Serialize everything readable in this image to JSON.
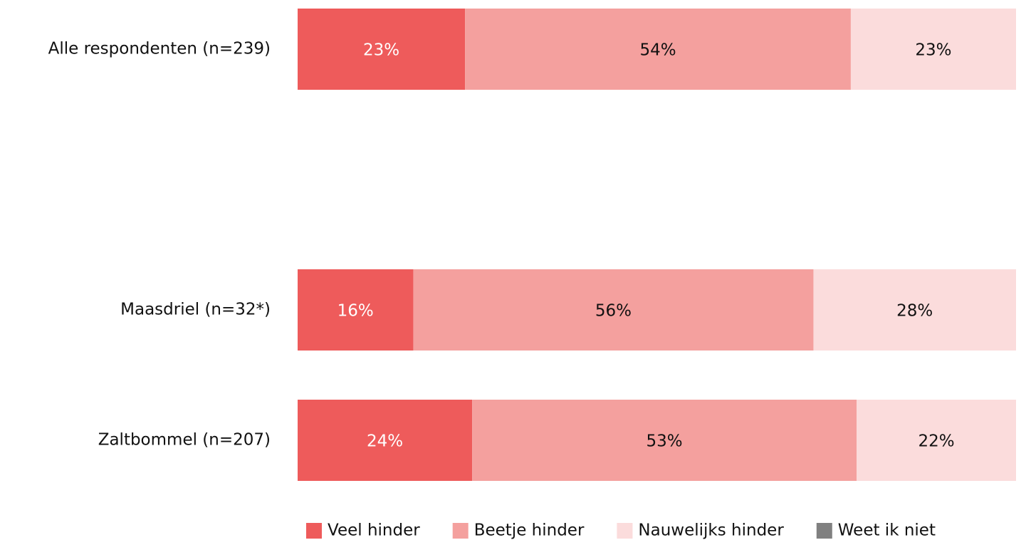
{
  "chart_data": {
    "type": "stacked-bar-horizontal",
    "categories": [
      "Alle respondenten (n=239)",
      null,
      "Maasdriel (n=32*)",
      "Zaltbommel (n=207)"
    ],
    "xlim": [
      0,
      100
    ],
    "series": [
      {
        "name": "Veel hinder",
        "color": "#ee5b5b",
        "label_color": "#ffffff",
        "values": [
          23.3,
          null,
          16.1,
          24.3
        ],
        "value_labels": [
          "23%",
          null,
          "16%",
          "24%"
        ]
      },
      {
        "name": "Beetje hinder",
        "color": "#f4a09e",
        "label_color": "#111111",
        "values": [
          53.7,
          null,
          55.7,
          53.5
        ],
        "value_labels": [
          "54%",
          null,
          "56%",
          "53%"
        ]
      },
      {
        "name": "Nauwelijks hinder",
        "color": "#fbdcdc",
        "label_color": "#111111",
        "values": [
          23.0,
          null,
          28.2,
          22.2
        ],
        "value_labels": [
          "23%",
          null,
          "28%",
          "22%"
        ]
      },
      {
        "name": "Weet ik niet",
        "color": "#808080",
        "label_color": "#ffffff",
        "values": [
          0,
          null,
          0,
          0
        ],
        "value_labels": [
          null,
          null,
          null,
          null
        ]
      }
    ],
    "legend": "bottom"
  }
}
